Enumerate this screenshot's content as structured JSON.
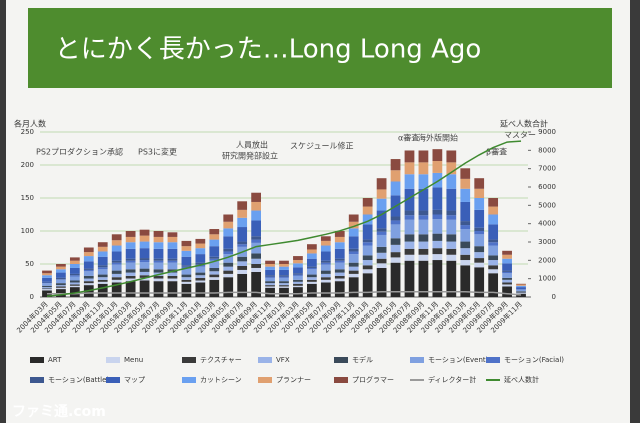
{
  "chart_data": {
    "type": "bar",
    "title": "とにかく長かった…Long Long Ago",
    "y_label": "各月人数",
    "y2_label": "延べ人数合計",
    "annotations": [
      "PS2プロダクション承認",
      "PS3に変更",
      "人員放出",
      "研究開発部設立",
      "スケジュール修正",
      "α審査",
      "海外版開始",
      "β審査",
      "マスター"
    ],
    "watermark": "ファミ通.com",
    "categories": [
      "2004年03月",
      "2004年05月",
      "2004年07月",
      "2004年09月",
      "2004年11月",
      "2005年01月",
      "2005年03月",
      "2005年05月",
      "2005年07月",
      "2005年09月",
      "2005年11月",
      "2006年01月",
      "2006年03月",
      "2006年05月",
      "2006年07月",
      "2006年09月",
      "2006年11月",
      "2007年01月",
      "2007年03月",
      "2007年05月",
      "2007年07月",
      "2007年09月",
      "2007年11月",
      "2008年01月",
      "2008年03月",
      "2008年05月",
      "2008年07月",
      "2008年09月",
      "2008年11月",
      "2009年01月",
      "2009年03月",
      "2009年05月",
      "2009年07月",
      "2009年09月",
      "2009年11月"
    ],
    "ylim": [
      0,
      250
    ],
    "yticks": [
      0,
      50,
      100,
      150,
      200,
      250
    ],
    "y2lim": [
      0,
      9000
    ],
    "y2ticks": [
      0,
      1000,
      2000,
      3000,
      4000,
      5000,
      6000,
      7000,
      8000,
      9000
    ],
    "grid": true,
    "series": [
      {
        "name": "ART",
        "color": "#2a2a2a",
        "values": [
          10,
          12,
          15,
          18,
          20,
          22,
          24,
          25,
          24,
          24,
          20,
          22,
          26,
          30,
          35,
          38,
          14,
          14,
          15,
          20,
          22,
          24,
          30,
          36,
          44,
          52,
          55,
          55,
          56,
          55,
          48,
          45,
          36,
          16,
          5
        ]
      },
      {
        "name": "Menu",
        "color": "#c9d4ee",
        "values": [
          2,
          2,
          2,
          3,
          3,
          4,
          4,
          4,
          4,
          4,
          3,
          3,
          4,
          5,
          6,
          6,
          2,
          2,
          2,
          3,
          4,
          4,
          5,
          6,
          7,
          8,
          9,
          9,
          9,
          9,
          8,
          7,
          6,
          3,
          1
        ]
      },
      {
        "name": "テクスチャー",
        "color": "#3a3a3a",
        "values": [
          1,
          2,
          2,
          3,
          3,
          4,
          4,
          4,
          4,
          4,
          3,
          4,
          4,
          5,
          6,
          6,
          2,
          2,
          3,
          3,
          4,
          4,
          5,
          6,
          7,
          8,
          9,
          9,
          9,
          9,
          8,
          7,
          6,
          3,
          1
        ]
      },
      {
        "name": "VFX",
        "color": "#9ab3e8",
        "values": [
          2,
          2,
          3,
          4,
          4,
          5,
          5,
          5,
          5,
          5,
          4,
          4,
          5,
          6,
          7,
          8,
          3,
          3,
          3,
          4,
          5,
          5,
          6,
          8,
          9,
          11,
          11,
          11,
          11,
          11,
          10,
          9,
          8,
          4,
          1
        ]
      },
      {
        "name": "モデル",
        "color": "#3a4a5a",
        "values": [
          2,
          3,
          3,
          4,
          4,
          5,
          5,
          5,
          5,
          5,
          4,
          4,
          5,
          6,
          7,
          8,
          3,
          3,
          3,
          4,
          5,
          5,
          6,
          7,
          9,
          10,
          11,
          11,
          11,
          11,
          10,
          9,
          7,
          3,
          1
        ]
      },
      {
        "name": "モーション(Event)",
        "color": "#7fa0e0",
        "values": [
          4,
          5,
          6,
          7,
          8,
          9,
          10,
          10,
          10,
          10,
          9,
          9,
          11,
          13,
          15,
          16,
          5,
          5,
          6,
          8,
          9,
          10,
          13,
          15,
          18,
          21,
          22,
          22,
          22,
          22,
          19,
          18,
          15,
          7,
          2
        ]
      },
      {
        "name": "モーション(Facial)",
        "color": "#4f72c8",
        "values": [
          1,
          1,
          2,
          2,
          3,
          3,
          3,
          3,
          3,
          3,
          3,
          3,
          3,
          4,
          4,
          5,
          2,
          2,
          2,
          2,
          3,
          3,
          4,
          5,
          5,
          6,
          7,
          7,
          7,
          7,
          6,
          5,
          5,
          2,
          1
        ]
      },
      {
        "name": "モーション(Battle)",
        "color": "#3d5890",
        "values": [
          1,
          2,
          2,
          2,
          3,
          3,
          3,
          3,
          3,
          3,
          2,
          3,
          3,
          4,
          4,
          5,
          2,
          2,
          2,
          2,
          3,
          3,
          4,
          4,
          5,
          6,
          7,
          7,
          7,
          7,
          6,
          5,
          4,
          2,
          0
        ]
      },
      {
        "name": "マップ",
        "color": "#3a5fb8",
        "values": [
          6,
          8,
          9,
          11,
          13,
          14,
          15,
          15,
          15,
          15,
          13,
          13,
          16,
          19,
          22,
          24,
          8,
          8,
          9,
          12,
          14,
          15,
          19,
          23,
          27,
          32,
          33,
          33,
          34,
          33,
          29,
          27,
          23,
          11,
          3
        ]
      },
      {
        "name": "カットシーン",
        "color": "#6aa0f0",
        "values": [
          4,
          5,
          6,
          8,
          8,
          9,
          10,
          10,
          10,
          10,
          9,
          9,
          10,
          12,
          14,
          15,
          5,
          5,
          6,
          8,
          9,
          10,
          12,
          15,
          18,
          21,
          22,
          22,
          22,
          22,
          20,
          18,
          15,
          7,
          2
        ]
      },
      {
        "name": "プランナー",
        "color": "#e0a070",
        "values": [
          3,
          4,
          5,
          6,
          7,
          8,
          8,
          9,
          8,
          8,
          7,
          7,
          8,
          10,
          12,
          13,
          4,
          4,
          5,
          6,
          7,
          8,
          10,
          12,
          14,
          17,
          18,
          18,
          18,
          18,
          15,
          14,
          12,
          6,
          2
        ]
      },
      {
        "name": "プログラマー",
        "color": "#8a4a40",
        "values": [
          4,
          4,
          5,
          7,
          7,
          9,
          9,
          9,
          9,
          7,
          8,
          7,
          8,
          11,
          13,
          14,
          5,
          5,
          6,
          8,
          7,
          9,
          11,
          13,
          17,
          17,
          18,
          18,
          18,
          18,
          16,
          16,
          13,
          6,
          1
        ]
      },
      {
        "name": "ディレクター計",
        "color": "#9a9a9a",
        "line": true,
        "values": [
          5,
          5,
          5,
          6,
          6,
          6,
          6,
          6,
          6,
          6,
          6,
          6,
          6,
          7,
          7,
          7,
          5,
          5,
          5,
          6,
          6,
          6,
          7,
          7,
          8,
          8,
          8,
          8,
          8,
          8,
          8,
          7,
          7,
          5,
          3
        ]
      },
      {
        "name": "延べ人数計",
        "color": "#3f8a30",
        "line": true,
        "axis": "y2",
        "values": [
          40,
          120,
          220,
          350,
          500,
          660,
          840,
          1030,
          1220,
          1400,
          1570,
          1740,
          1940,
          2170,
          2450,
          2750,
          2860,
          2970,
          3090,
          3250,
          3420,
          3610,
          3850,
          4130,
          4500,
          4950,
          5400,
          5850,
          6300,
          6800,
          7300,
          7750,
          8150,
          8450,
          8500
        ]
      }
    ]
  }
}
